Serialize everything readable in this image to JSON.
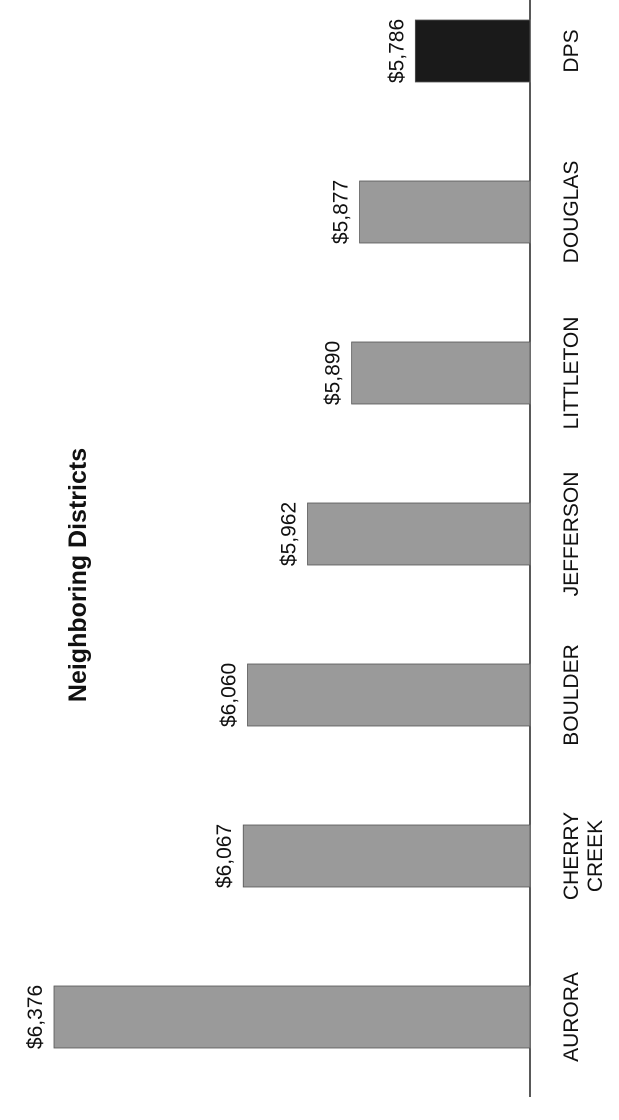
{
  "chart_data": {
    "type": "bar",
    "title": "Neighboring Districts",
    "orientation": "rotated-90-ccw",
    "categories": [
      "AURORA",
      "CHERRY CREEK",
      "BOULDER",
      "JEFFERSON",
      "LITTLETON",
      "DOUGLAS",
      "DPS"
    ],
    "category_lines": [
      [
        "AURORA"
      ],
      [
        "CHERRY",
        "CREEK"
      ],
      [
        "BOULDER"
      ],
      [
        "JEFFERSON"
      ],
      [
        "LITTLETON"
      ],
      [
        "DOUGLAS"
      ],
      [
        "DPS"
      ]
    ],
    "values": [
      6376,
      6067,
      6060,
      5962,
      5890,
      5877,
      5786
    ],
    "value_labels": [
      "$6,376",
      "$6,067",
      "$6,060",
      "$5,962",
      "$5,890",
      "$5,877",
      "$5,786"
    ],
    "highlight_category": "DPS",
    "ylim": [
      5700,
      6376
    ],
    "xlabel": "",
    "ylabel": "",
    "grid": false,
    "colors": {
      "bar": "#9a9a9a",
      "highlight": "#1a1a1a",
      "axis": "#222222",
      "text": "#111111"
    }
  }
}
